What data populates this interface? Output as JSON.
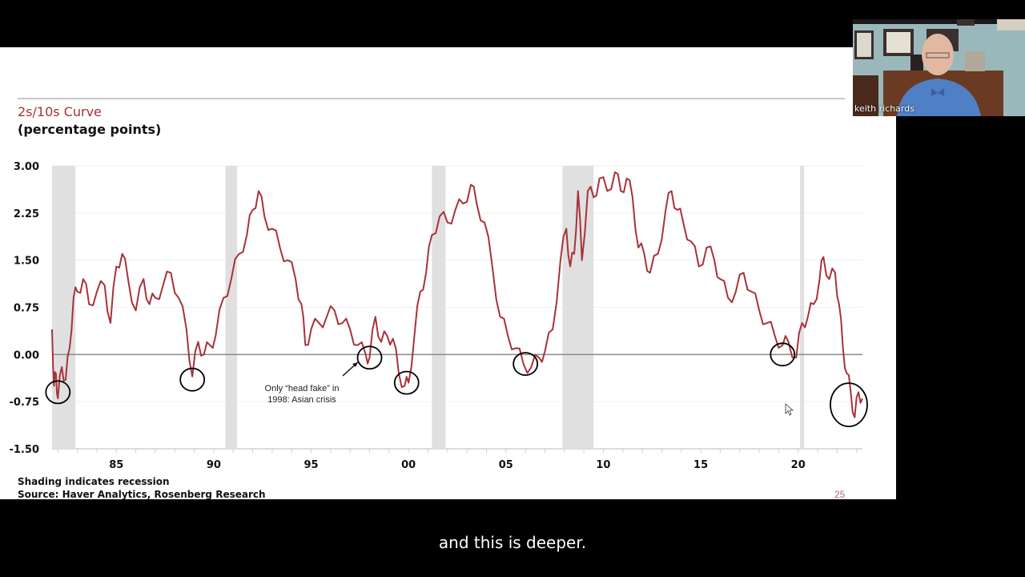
{
  "slide": {
    "title": "2s/10s Curve",
    "subtitle": "(percentage points)",
    "footnote_shading": "Shading indicates recession",
    "footnote_source": "Source: Haver Analytics, Rosenberg Research",
    "page_number": "25",
    "annotation_line1": "Only “head fake” in",
    "annotation_line2": "1998: Asian crisis"
  },
  "video": {
    "participant_name": "keith richards"
  },
  "caption": {
    "text": "and this is deeper."
  },
  "colors": {
    "series": "#a8323a",
    "recession": "#e0e0e0",
    "title": "#a23238",
    "zero_line": "#8a8a8a"
  },
  "chart_data": {
    "type": "line",
    "title": "2s/10s Curve",
    "ylabel": "percentage points",
    "xlabel": "",
    "ylim": [
      -1.5,
      3.0
    ],
    "xlim": [
      1981.7,
      2023.3
    ],
    "yticks": [
      "3.00",
      "2.25",
      "1.50",
      "0.75",
      "0.00",
      "-0.75",
      "-1.50"
    ],
    "ytick_values": [
      3.0,
      2.25,
      1.5,
      0.75,
      0.0,
      -0.75,
      -1.5
    ],
    "xticks": [
      "85",
      "90",
      "95",
      "00",
      "05",
      "10",
      "15",
      "20"
    ],
    "xtick_values": [
      1985,
      1990,
      1995,
      2000,
      2005,
      2010,
      2015,
      2020
    ],
    "grid": true,
    "recessions": [
      [
        1981.7,
        1982.9
      ],
      [
        1990.6,
        1991.2
      ],
      [
        2001.2,
        2001.9
      ],
      [
        2007.9,
        2009.5
      ],
      [
        2020.1,
        2020.3
      ]
    ],
    "circled_inversions": [
      {
        "x": 1982.0,
        "y": -0.6
      },
      {
        "x": 1988.9,
        "y": -0.4
      },
      {
        "x": 1998.0,
        "y": -0.05
      },
      {
        "x": 1999.9,
        "y": -0.45
      },
      {
        "x": 2006.0,
        "y": -0.15
      },
      {
        "x": 2019.2,
        "y": 0.0
      },
      {
        "x": 2022.6,
        "y": -0.8
      }
    ],
    "series": [
      {
        "name": "2s/10s spread",
        "x": [
          1981.7,
          1981.8,
          1981.9,
          1982.0,
          1982.2,
          1982.4,
          1982.6,
          1982.8,
          1983.0,
          1983.3,
          1983.6,
          1984.0,
          1984.4,
          1984.7,
          1985.0,
          1985.3,
          1985.6,
          1986.0,
          1986.4,
          1986.7,
          1987.0,
          1987.4,
          1987.8,
          1988.2,
          1988.6,
          1988.9,
          1989.2,
          1989.5,
          1989.8,
          1990.1,
          1990.5,
          1990.9,
          1991.3,
          1991.7,
          1992.0,
          1992.3,
          1992.6,
          1993.0,
          1993.4,
          1993.8,
          1994.2,
          1994.5,
          1994.7,
          1995.0,
          1995.4,
          1995.8,
          1996.2,
          1996.6,
          1997.0,
          1997.4,
          1997.8,
          1998.0,
          1998.3,
          1998.6,
          1998.9,
          1999.2,
          1999.5,
          1999.8,
          2000.0,
          2000.3,
          2000.6,
          2000.9,
          2001.2,
          2001.6,
          2002.0,
          2002.4,
          2002.8,
          2003.2,
          2003.5,
          2003.9,
          2004.3,
          2004.7,
          2005.1,
          2005.5,
          2005.9,
          2006.3,
          2006.7,
          2007.0,
          2007.4,
          2007.8,
          2008.1,
          2008.3,
          2008.5,
          2008.7,
          2008.9,
          2009.2,
          2009.5,
          2009.8,
          2010.2,
          2010.6,
          2010.9,
          2011.2,
          2011.5,
          2011.8,
          2012.1,
          2012.4,
          2012.8,
          2013.2,
          2013.5,
          2013.8,
          2014.1,
          2014.5,
          2014.9,
          2015.3,
          2015.7,
          2016.0,
          2016.4,
          2016.8,
          2017.2,
          2017.6,
          2018.0,
          2018.4,
          2018.8,
          2019.2,
          2019.5,
          2019.9,
          2020.2,
          2020.5,
          2020.8,
          2021.1,
          2021.3,
          2021.6,
          2021.9,
          2022.1,
          2022.3,
          2022.5,
          2022.7,
          2022.9,
          2023.1,
          2023.3
        ],
        "values": [
          0.4,
          -0.5,
          -0.3,
          -0.7,
          -0.2,
          -0.4,
          0.1,
          0.9,
          1.0,
          1.2,
          0.8,
          1.0,
          1.1,
          0.5,
          1.4,
          1.6,
          1.2,
          0.7,
          1.2,
          0.8,
          0.9,
          1.1,
          1.3,
          0.9,
          0.4,
          -0.35,
          0.2,
          0.0,
          0.15,
          0.3,
          0.9,
          1.2,
          1.6,
          1.9,
          2.3,
          2.6,
          2.2,
          2.0,
          1.7,
          1.5,
          1.2,
          0.8,
          0.15,
          0.4,
          0.5,
          0.6,
          0.7,
          0.5,
          0.4,
          0.15,
          0.0,
          -0.05,
          0.6,
          0.2,
          0.3,
          0.25,
          -0.3,
          -0.5,
          -0.45,
          0.3,
          1.0,
          1.3,
          1.9,
          2.2,
          2.1,
          2.3,
          2.4,
          2.7,
          2.4,
          2.1,
          1.4,
          0.6,
          0.3,
          0.1,
          -0.15,
          -0.2,
          -0.05,
          0.05,
          0.4,
          1.5,
          2.0,
          1.4,
          1.6,
          2.6,
          1.5,
          2.6,
          2.5,
          2.8,
          2.6,
          2.9,
          2.6,
          2.8,
          2.5,
          1.7,
          1.6,
          1.3,
          1.6,
          2.3,
          2.6,
          2.3,
          2.1,
          1.8,
          1.4,
          1.7,
          1.5,
          1.2,
          0.9,
          1.0,
          1.3,
          1.0,
          0.7,
          0.5,
          0.3,
          0.15,
          0.2,
          -0.05,
          0.5,
          0.6,
          0.8,
          1.2,
          1.55,
          1.2,
          1.3,
          0.8,
          0.1,
          -0.3,
          -0.6,
          -1.0,
          -0.6,
          -0.7
        ]
      }
    ]
  }
}
